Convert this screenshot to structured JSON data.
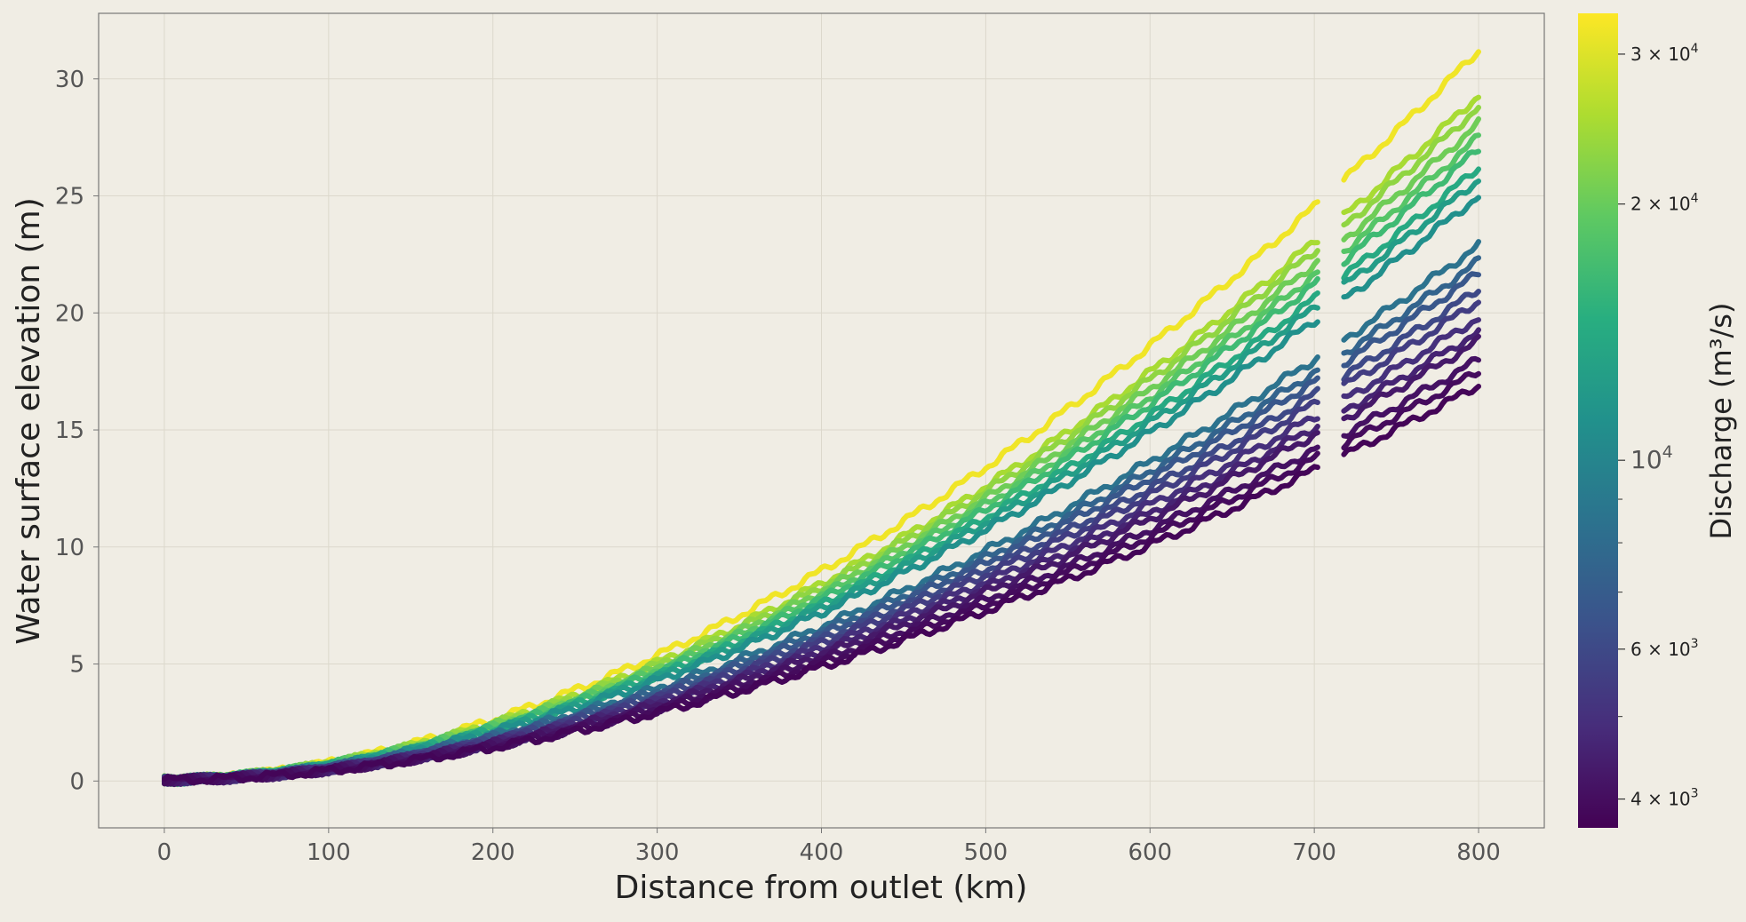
{
  "chart_data": {
    "type": "scatter",
    "title": "",
    "xlabel": "Distance from outlet (km)",
    "ylabel": "Water surface elevation (m)",
    "xlim": [
      -40,
      840
    ],
    "ylim": [
      -2,
      32.8
    ],
    "xticks": [
      0,
      100,
      200,
      300,
      400,
      500,
      600,
      700,
      800
    ],
    "yticks": [
      0,
      5,
      10,
      15,
      20,
      25,
      30
    ],
    "grid": true,
    "x_range_of_profiles": [
      0,
      800
    ],
    "gap_km": [
      702,
      718
    ],
    "profile_model": "elevation = end_elevation_m * (x/800)^1.8 near zero at outlet",
    "colorbar": {
      "label": "Discharge (m³/s)",
      "scale": "log",
      "range": [
        3700,
        33500
      ],
      "colormap": "viridis",
      "ticks": [
        {
          "value": 4000,
          "mantissa": "4",
          "base": "10",
          "exp": "3"
        },
        {
          "value": 6000,
          "mantissa": "6",
          "base": "10",
          "exp": "3"
        },
        {
          "value": 10000,
          "mantissa": "",
          "base": "10",
          "exp": "4"
        },
        {
          "value": 20000,
          "mantissa": "2",
          "base": "10",
          "exp": "4"
        },
        {
          "value": 30000,
          "mantissa": "3",
          "base": "10",
          "exp": "4"
        }
      ]
    },
    "series": [
      {
        "discharge": 3800,
        "end_elevation_m": 16.9
      },
      {
        "discharge": 3950,
        "end_elevation_m": 17.5
      },
      {
        "discharge": 4100,
        "end_elevation_m": 18.0
      },
      {
        "discharge": 4300,
        "end_elevation_m": 18.8
      },
      {
        "discharge": 4600,
        "end_elevation_m": 19.2
      },
      {
        "discharge": 5000,
        "end_elevation_m": 19.8
      },
      {
        "discharge": 5500,
        "end_elevation_m": 20.5
      },
      {
        "discharge": 6000,
        "end_elevation_m": 21.0
      },
      {
        "discharge": 6700,
        "end_elevation_m": 21.7
      },
      {
        "discharge": 7500,
        "end_elevation_m": 22.2
      },
      {
        "discharge": 8500,
        "end_elevation_m": 22.9
      },
      {
        "discharge": 11000,
        "end_elevation_m": 25.0
      },
      {
        "discharge": 12500,
        "end_elevation_m": 25.7
      },
      {
        "discharge": 14000,
        "end_elevation_m": 26.2
      },
      {
        "discharge": 16500,
        "end_elevation_m": 27.0
      },
      {
        "discharge": 18500,
        "end_elevation_m": 27.5
      },
      {
        "discharge": 20500,
        "end_elevation_m": 28.1
      },
      {
        "discharge": 23000,
        "end_elevation_m": 28.8
      },
      {
        "discharge": 25000,
        "end_elevation_m": 29.3
      },
      {
        "discharge": 32000,
        "end_elevation_m": 31.2
      }
    ]
  }
}
